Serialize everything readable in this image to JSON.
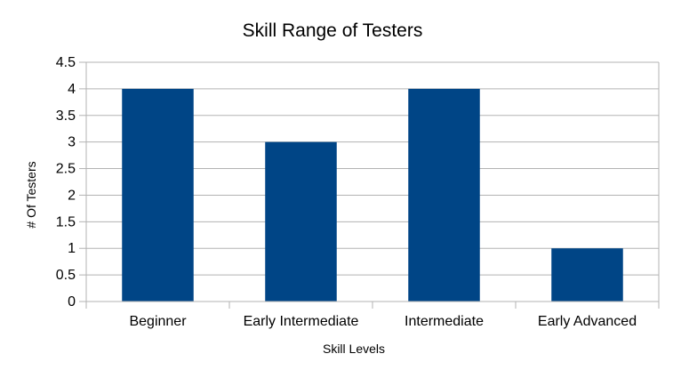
{
  "chart_data": {
    "type": "bar",
    "title": "Skill Range of Testers",
    "xlabel": "Skill Levels",
    "ylabel": "# Of Testers",
    "categories": [
      "Beginner",
      "Early Intermediate",
      "Intermediate",
      "Early Advanced"
    ],
    "values": [
      4,
      3,
      4,
      1
    ],
    "ylim": [
      0,
      4.5
    ],
    "yticks": [
      "0",
      "0.5",
      "1",
      "1.5",
      "2",
      "2.5",
      "3",
      "3.5",
      "4",
      "4.5"
    ],
    "grid": true,
    "legend": "none",
    "colors": {
      "bar": "#004586",
      "grid": "#b3b3b3",
      "axis": "#b3b3b3"
    }
  }
}
